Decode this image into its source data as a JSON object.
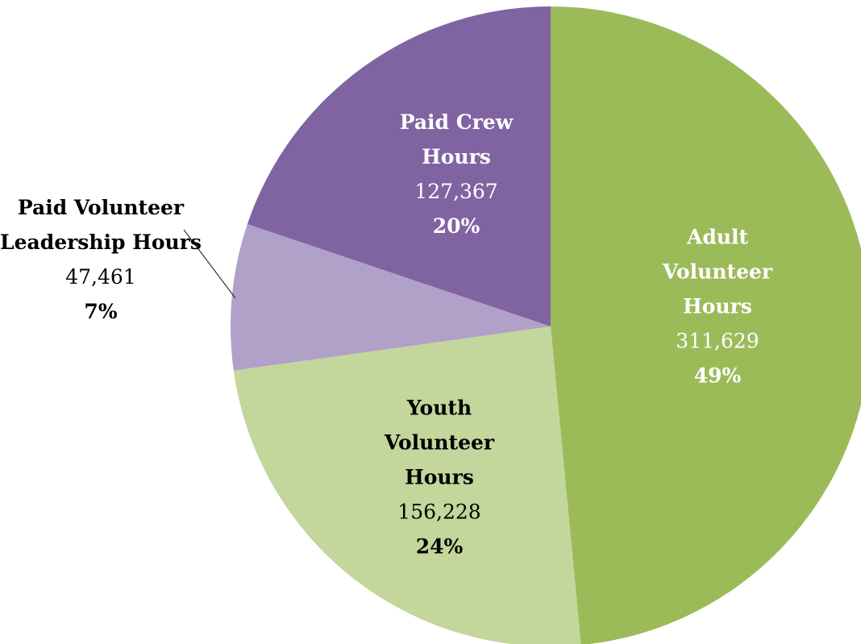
{
  "chart_data": {
    "type": "pie",
    "categories": [
      "Adult Volunteer Hours",
      "Youth Volunteer Hours",
      "Paid Volunteer Leadership Hours",
      "Paid Crew Hours"
    ],
    "values": [
      311629,
      156228,
      47461,
      127367
    ],
    "value_labels": [
      "311,629",
      "156,228",
      "47,461",
      "127,367"
    ],
    "percentages": [
      49,
      24,
      7,
      20
    ],
    "percentage_labels": [
      "49%",
      "24%",
      "7%",
      "20%"
    ],
    "colors": [
      "#9bbb59",
      "#c3d69b",
      "#b1a0c7",
      "#8064a2"
    ]
  }
}
